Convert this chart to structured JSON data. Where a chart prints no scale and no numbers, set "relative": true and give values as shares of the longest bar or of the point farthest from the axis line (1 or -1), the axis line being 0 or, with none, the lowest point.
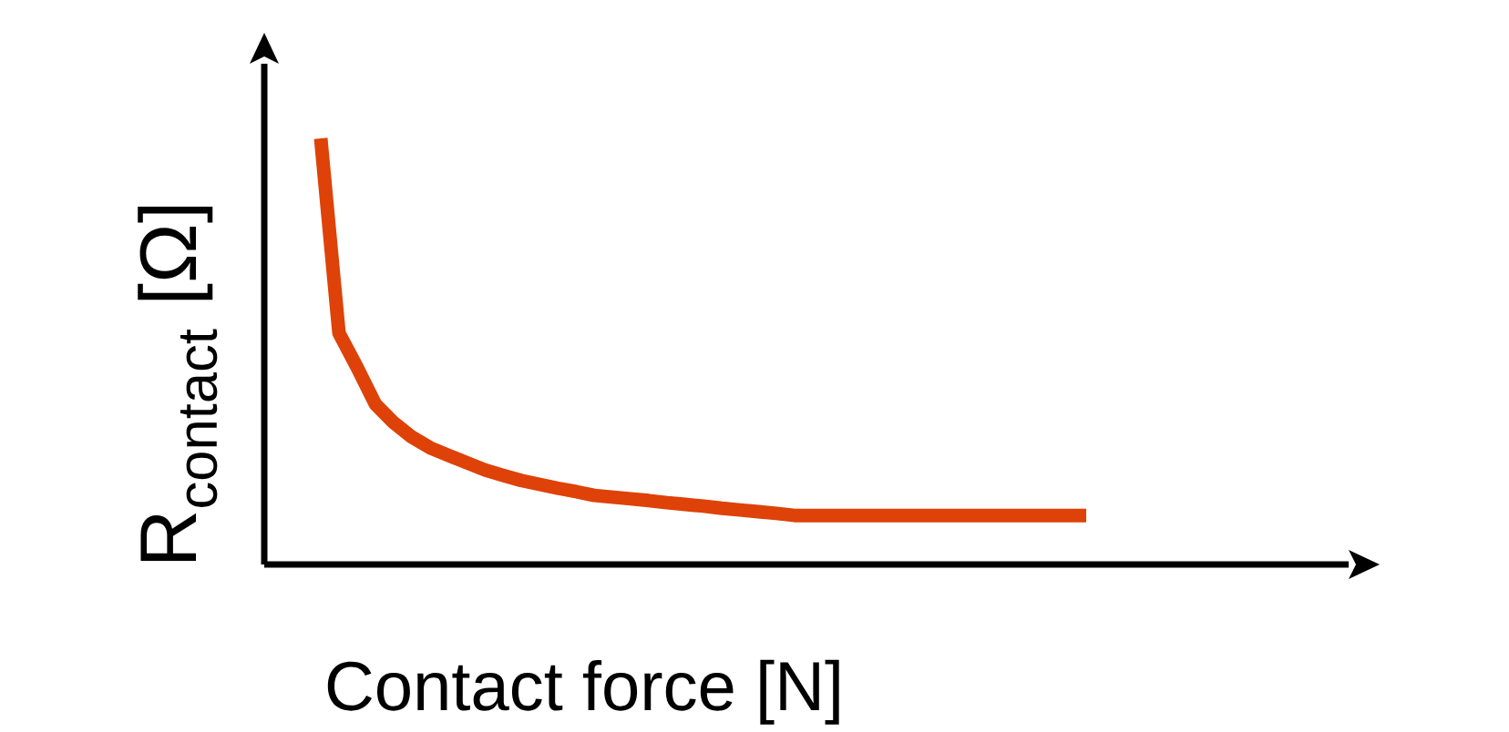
{
  "chart_data": {
    "type": "line",
    "relative": true,
    "xlabel": "Contact force [N]",
    "ylabel": "R$_{contact}$  [Ω]",
    "color": "#de4208",
    "marker": "none",
    "line_style": "solid",
    "categories": [
      null,
      null,
      null,
      null,
      null,
      null,
      null,
      null,
      null,
      null,
      null,
      null,
      null,
      null,
      null,
      null,
      null,
      null,
      null,
      null,
      null,
      null,
      null,
      null,
      null,
      null,
      null,
      null,
      null,
      null,
      null,
      null,
      null,
      null,
      null,
      null,
      null,
      null,
      null,
      null,
      null,
      null,
      null
    ],
    "values": [
      1,
      0.543,
      0.462,
      0.376,
      0.333,
      0.299,
      0.274,
      0.256,
      0.239,
      0.222,
      0.209,
      0.197,
      0.188,
      0.179,
      0.171,
      0.162,
      0.158,
      0.154,
      0.15,
      0.145,
      0.141,
      0.137,
      0.132,
      0.128,
      0.124,
      0.12,
      0.115,
      0.115,
      0.115,
      0.115,
      0.115,
      0.115,
      0.115,
      0.115,
      0.115,
      0.115,
      0.115,
      0.115,
      0.115,
      0.115,
      0.115,
      0.115,
      0.115
    ]
  }
}
